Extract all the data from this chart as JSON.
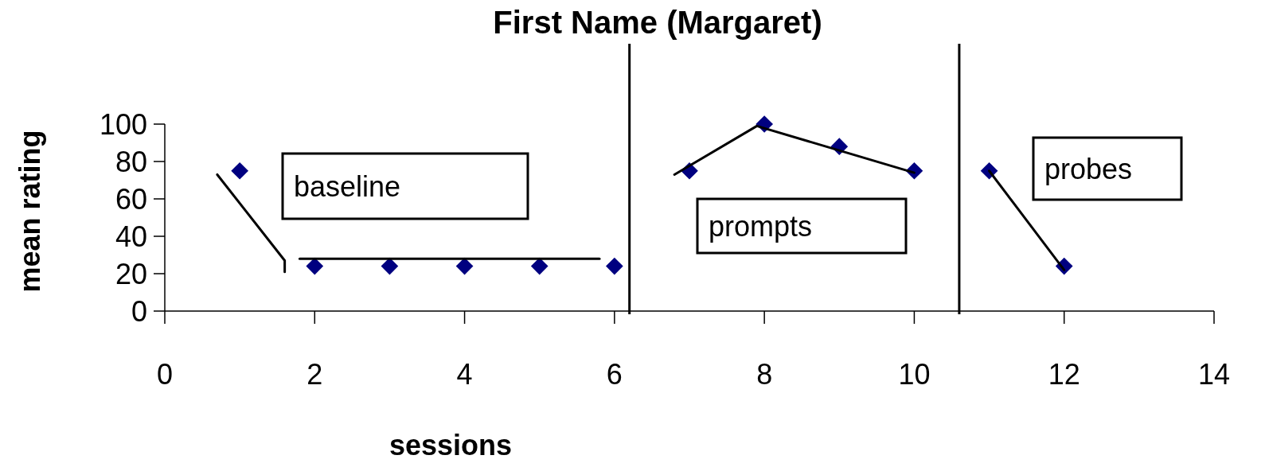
{
  "chart_data": {
    "type": "scatter",
    "title": "First Name (Margaret)",
    "xlabel": "sessions",
    "ylabel": "mean rating",
    "x": [
      1,
      2,
      3,
      4,
      5,
      6,
      7,
      8,
      9,
      10,
      11,
      12
    ],
    "series": [
      {
        "color": "#000080",
        "values": [
          75,
          24,
          24,
          24,
          24,
          24,
          75,
          100,
          88,
          75,
          75,
          24
        ]
      },
      {
        "type": "line",
        "color": "#000000",
        "marker": "none",
        "x": [
          0.7,
          1.6,
          1.6
        ],
        "values": [
          73,
          27,
          21
        ]
      },
      {
        "type": "line",
        "color": "#000000",
        "marker": "none",
        "x": [
          1.8,
          5.8
        ],
        "values": [
          28,
          28
        ]
      },
      {
        "type": "line",
        "color": "#000000",
        "marker": "none",
        "x": [
          6.8,
          7.9,
          10
        ],
        "values": [
          73,
          99,
          74
        ]
      },
      {
        "type": "line",
        "color": "#000000",
        "marker": "none",
        "x": [
          11,
          12
        ],
        "values": [
          75,
          22
        ]
      }
    ],
    "xlim": [
      0,
      14
    ],
    "xticks": [
      0,
      2,
      4,
      6,
      8,
      10,
      12,
      14
    ],
    "ylim": [
      0,
      100
    ],
    "yticks": [
      0,
      20,
      40,
      60,
      80,
      100
    ],
    "ref_lines": [
      {
        "axis": "x",
        "value": 6.2,
        "color": "#000000"
      },
      {
        "axis": "x",
        "value": 10.6,
        "color": "#000000"
      }
    ],
    "annotations": [
      "baseline",
      "prompts",
      "probes"
    ],
    "marker": "diamond",
    "line_style": "solid",
    "grid": false
  }
}
